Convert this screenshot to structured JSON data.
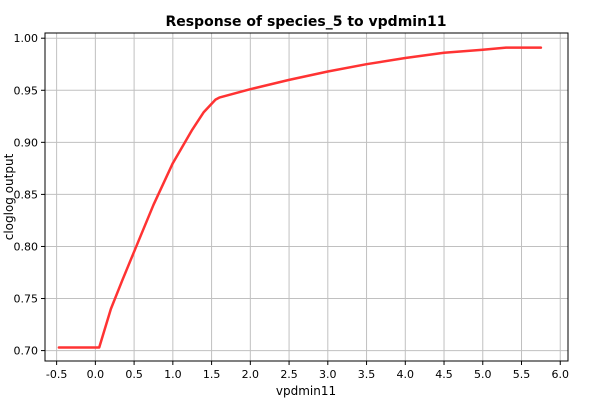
{
  "chart_data": {
    "type": "line",
    "title": "Response of species_5 to vpdmin11",
    "xlabel": "vpdmin11",
    "ylabel": "cloglog output",
    "xlim": [
      -0.65,
      6.1
    ],
    "ylim": [
      0.69,
      1.005
    ],
    "xticks": [
      "-0.5",
      "0.0",
      "0.5",
      "1.0",
      "1.5",
      "2.0",
      "2.5",
      "3.0",
      "3.5",
      "4.0",
      "4.5",
      "5.0",
      "5.5",
      "6.0"
    ],
    "yticks": [
      "0.70",
      "0.75",
      "0.80",
      "0.85",
      "0.90",
      "0.95",
      "1.00"
    ],
    "grid": true,
    "legend": "none",
    "series": [
      {
        "color": "#ff3333",
        "x": [
          -0.47,
          0.05,
          0.2,
          0.35,
          0.5,
          0.75,
          1.0,
          1.25,
          1.4,
          1.55,
          1.6,
          2.0,
          2.5,
          3.0,
          3.5,
          4.0,
          4.5,
          5.0,
          5.3,
          5.75
        ],
        "y": [
          0.703,
          0.703,
          0.74,
          0.768,
          0.795,
          0.84,
          0.88,
          0.912,
          0.929,
          0.941,
          0.943,
          0.951,
          0.96,
          0.968,
          0.975,
          0.981,
          0.986,
          0.989,
          0.991,
          0.991
        ]
      }
    ]
  }
}
